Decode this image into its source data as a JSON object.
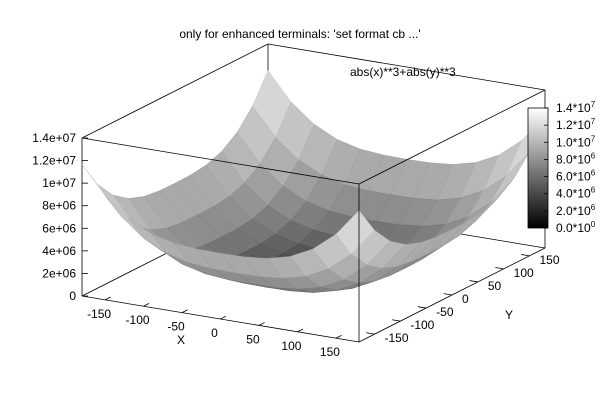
{
  "chart_data": {
    "type": "surface",
    "title": "only for enhanced terminals: 'set format cb ...'",
    "series": [
      {
        "name": "abs(x)**3+abs(y)**3",
        "function": "abs(x)**3+abs(y)**3"
      }
    ],
    "xlabel": "X",
    "ylabel": "Y",
    "xlim": [
      -180,
      180
    ],
    "ylim": [
      -180,
      180
    ],
    "zlim": [
      0,
      14000000
    ],
    "grid_samples": 13,
    "x_ticks": [
      "-150",
      "-100",
      "-50",
      "0",
      "50",
      "100",
      "150"
    ],
    "y_ticks": [
      "-150",
      "-100",
      "-50",
      "0",
      "50",
      "100",
      "150"
    ],
    "z_ticks": [
      "0",
      "2e+06",
      "4e+06",
      "6e+06",
      "8e+06",
      "1e+07",
      "1.2e+07",
      "1.4e+07"
    ],
    "colorbar": {
      "range": [
        0,
        14000000
      ],
      "ticks": [
        {
          "base": "0.0*10",
          "exp": "0"
        },
        {
          "base": "2.0*10",
          "exp": "6"
        },
        {
          "base": "4.0*10",
          "exp": "6"
        },
        {
          "base": "6.0*10",
          "exp": "6"
        },
        {
          "base": "8.0*10",
          "exp": "6"
        },
        {
          "base": "1.0*10",
          "exp": "7"
        },
        {
          "base": "1.2*10",
          "exp": "7"
        },
        {
          "base": "1.4*10",
          "exp": "7"
        }
      ],
      "palette": "gray"
    },
    "colors": {
      "low": "#000000",
      "high": "#ffffff",
      "axes": "#000000"
    }
  }
}
